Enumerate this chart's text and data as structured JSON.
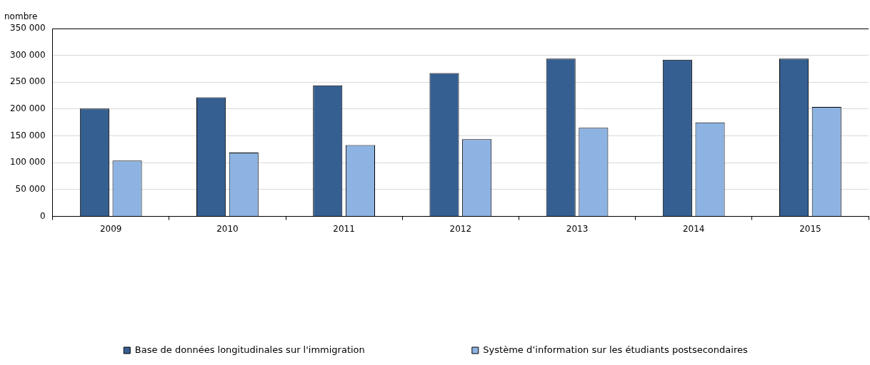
{
  "chart_data": {
    "type": "bar",
    "ylabel": "nombre",
    "categories": [
      "2009",
      "2010",
      "2011",
      "2012",
      "2013",
      "2014",
      "2015"
    ],
    "series": [
      {
        "name": "Base de données longitudinales sur l'immigration",
        "color": "#365f91",
        "values": [
          201000,
          222000,
          244000,
          267000,
          294000,
          292000,
          294000
        ]
      },
      {
        "name": "Système d’information sur les étudiants postsecondaires",
        "color": "#8db3e2",
        "values": [
          104000,
          119000,
          133000,
          144000,
          165000,
          175000,
          204000
        ]
      }
    ],
    "ylim": [
      0,
      350000
    ],
    "yticks": [
      {
        "value": 0,
        "label": "0"
      },
      {
        "value": 50000,
        "label": "50 000"
      },
      {
        "value": 100000,
        "label": "100 000"
      },
      {
        "value": 150000,
        "label": "150 000"
      },
      {
        "value": 200000,
        "label": "200 000"
      },
      {
        "value": 250000,
        "label": "250 000"
      },
      {
        "value": 300000,
        "label": "300 000"
      },
      {
        "value": 350000,
        "label": "350 000"
      }
    ],
    "grid": "y",
    "legend": "bottom"
  }
}
